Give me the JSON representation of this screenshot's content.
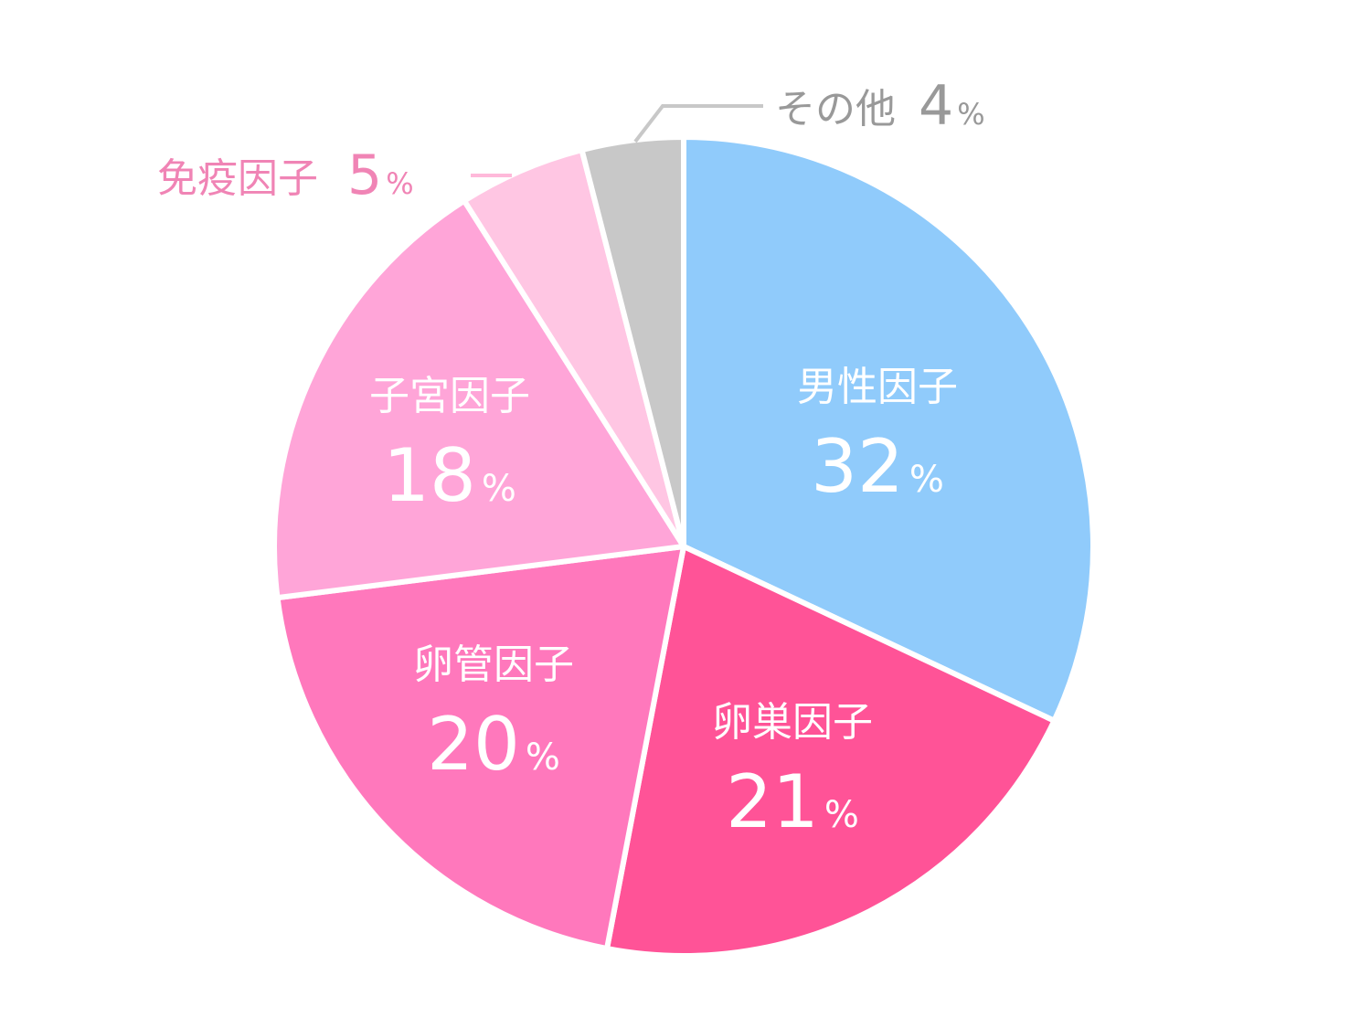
{
  "chart_data": {
    "type": "pie",
    "unit": "%",
    "slices": [
      {
        "label": "男性因子",
        "value": 32,
        "color": "#90CBFB"
      },
      {
        "label": "卵巣因子",
        "value": 21,
        "color": "#FF5397"
      },
      {
        "label": "卵管因子",
        "value": 20,
        "color": "#FF78BC"
      },
      {
        "label": "子宮因子",
        "value": 18,
        "color": "#FFA5D8"
      },
      {
        "label": "免疫因子",
        "value": 5,
        "color": "#FFC6E3"
      },
      {
        "label": "その他",
        "value": 4,
        "color": "#C8C8C8"
      }
    ],
    "inside_label_color": "#FFFFFF",
    "outside_label_colors": {
      "免疫因子": "#F084B5",
      "その他": "#999999"
    },
    "leader_line_colors": {
      "免疫因子": "#FFB9DA",
      "その他": "#C8C8C8"
    }
  }
}
